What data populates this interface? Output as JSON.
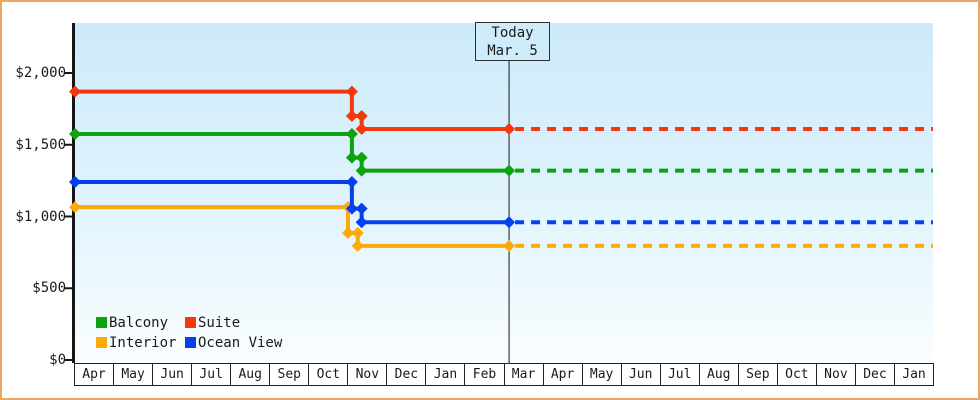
{
  "chart_data": {
    "type": "line",
    "title": "",
    "y_axis": {
      "min": 0,
      "max": 2400,
      "ticks": [
        {
          "value": 0,
          "label": "$0"
        },
        {
          "value": 500,
          "label": "$500"
        },
        {
          "value": 1000,
          "label": "$1,000"
        },
        {
          "value": 1500,
          "label": "$1,500"
        },
        {
          "value": 2000,
          "label": "$2,000"
        }
      ]
    },
    "x_axis": {
      "months": [
        "Apr",
        "May",
        "Jun",
        "Jul",
        "Aug",
        "Sep",
        "Oct",
        "Nov",
        "Dec",
        "Jan",
        "Feb",
        "Mar",
        "Apr",
        "May",
        "Jun",
        "Jul",
        "Aug",
        "Sep",
        "Oct",
        "Nov",
        "Dec",
        "Jan"
      ],
      "span_months": 22
    },
    "today": {
      "line1": "Today",
      "line2": "Mar. 5",
      "month_index": 11.13
    },
    "grid": "off",
    "legend_position": "bottom-left",
    "series": [
      {
        "name": "Balcony",
        "color": "#0ca30c",
        "points": [
          [
            0,
            1575
          ],
          [
            7.1,
            1575
          ],
          [
            7.1,
            1410
          ],
          [
            7.35,
            1410
          ],
          [
            7.35,
            1320
          ],
          [
            11.13,
            1320
          ]
        ],
        "forecast_price": 1320
      },
      {
        "name": "Suite",
        "color": "#f5380c",
        "points": [
          [
            0,
            1870
          ],
          [
            7.1,
            1870
          ],
          [
            7.1,
            1700
          ],
          [
            7.35,
            1700
          ],
          [
            7.35,
            1610
          ],
          [
            11.13,
            1610
          ]
        ],
        "forecast_price": 1610
      },
      {
        "name": "Interior",
        "color": "#fda908",
        "points": [
          [
            0,
            1065
          ],
          [
            7.0,
            1065
          ],
          [
            7.0,
            885
          ],
          [
            7.25,
            885
          ],
          [
            7.25,
            795
          ],
          [
            11.13,
            795
          ]
        ],
        "forecast_price": 795
      },
      {
        "name": "Ocean View",
        "color": "#0540f0",
        "points": [
          [
            0,
            1240
          ],
          [
            7.1,
            1240
          ],
          [
            7.1,
            1055
          ],
          [
            7.35,
            1055
          ],
          [
            7.35,
            960
          ],
          [
            11.13,
            960
          ]
        ],
        "forecast_price": 960
      }
    ]
  }
}
